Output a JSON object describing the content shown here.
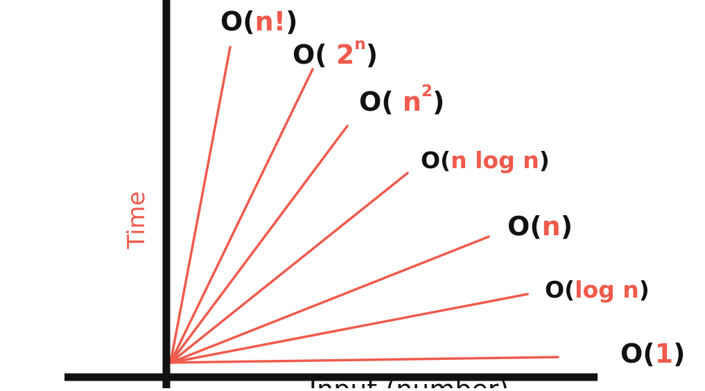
{
  "colors": {
    "axis": "#111111",
    "curve": "#f05a4c",
    "label_outer": "#111111",
    "label_inner": "#f05a4c",
    "ylabel": "#f05a4c"
  },
  "ylabel": "Time",
  "xlabel": "Input (number)",
  "complexities": [
    {
      "open": "O(",
      "inner": "n!",
      "close": ")"
    },
    {
      "open": "O( ",
      "inner": "2",
      "sup": "n",
      "close": ")"
    },
    {
      "open": "O( ",
      "inner": "n",
      "sup": "2",
      "close": ")"
    },
    {
      "open": "O(",
      "inner": "n log n",
      "close": ")"
    },
    {
      "open": "O(",
      "inner": "n",
      "close": ")"
    },
    {
      "open": "O(",
      "inner": "log n",
      "close": ")"
    },
    {
      "open": "O(",
      "inner": "1",
      "close": ")"
    }
  ]
}
